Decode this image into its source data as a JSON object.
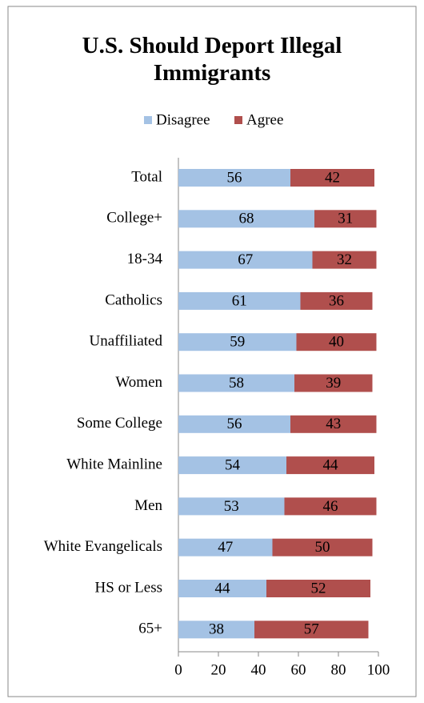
{
  "chart_data": {
    "type": "stacked-bar",
    "orientation": "horizontal",
    "title": "U.S. Should Deport Illegal Immigrants",
    "categories": [
      "Total",
      "College+",
      "18-34",
      "Catholics",
      "Unaffiliated",
      "Women",
      "Some College",
      "White Mainline",
      "Men",
      "White Evangelicals",
      "HS or Less",
      "65+"
    ],
    "series": [
      {
        "name": "Disagree",
        "color": "#a4c2e4",
        "values": [
          56,
          68,
          67,
          61,
          59,
          58,
          56,
          54,
          53,
          47,
          44,
          38
        ]
      },
      {
        "name": "Agree",
        "color": "#b04f4d",
        "values": [
          42,
          31,
          32,
          36,
          40,
          39,
          43,
          44,
          46,
          50,
          52,
          57
        ]
      }
    ],
    "xlim": [
      0,
      100
    ],
    "xticks": [
      0,
      20,
      40,
      60,
      80,
      100
    ],
    "legend": "top"
  }
}
